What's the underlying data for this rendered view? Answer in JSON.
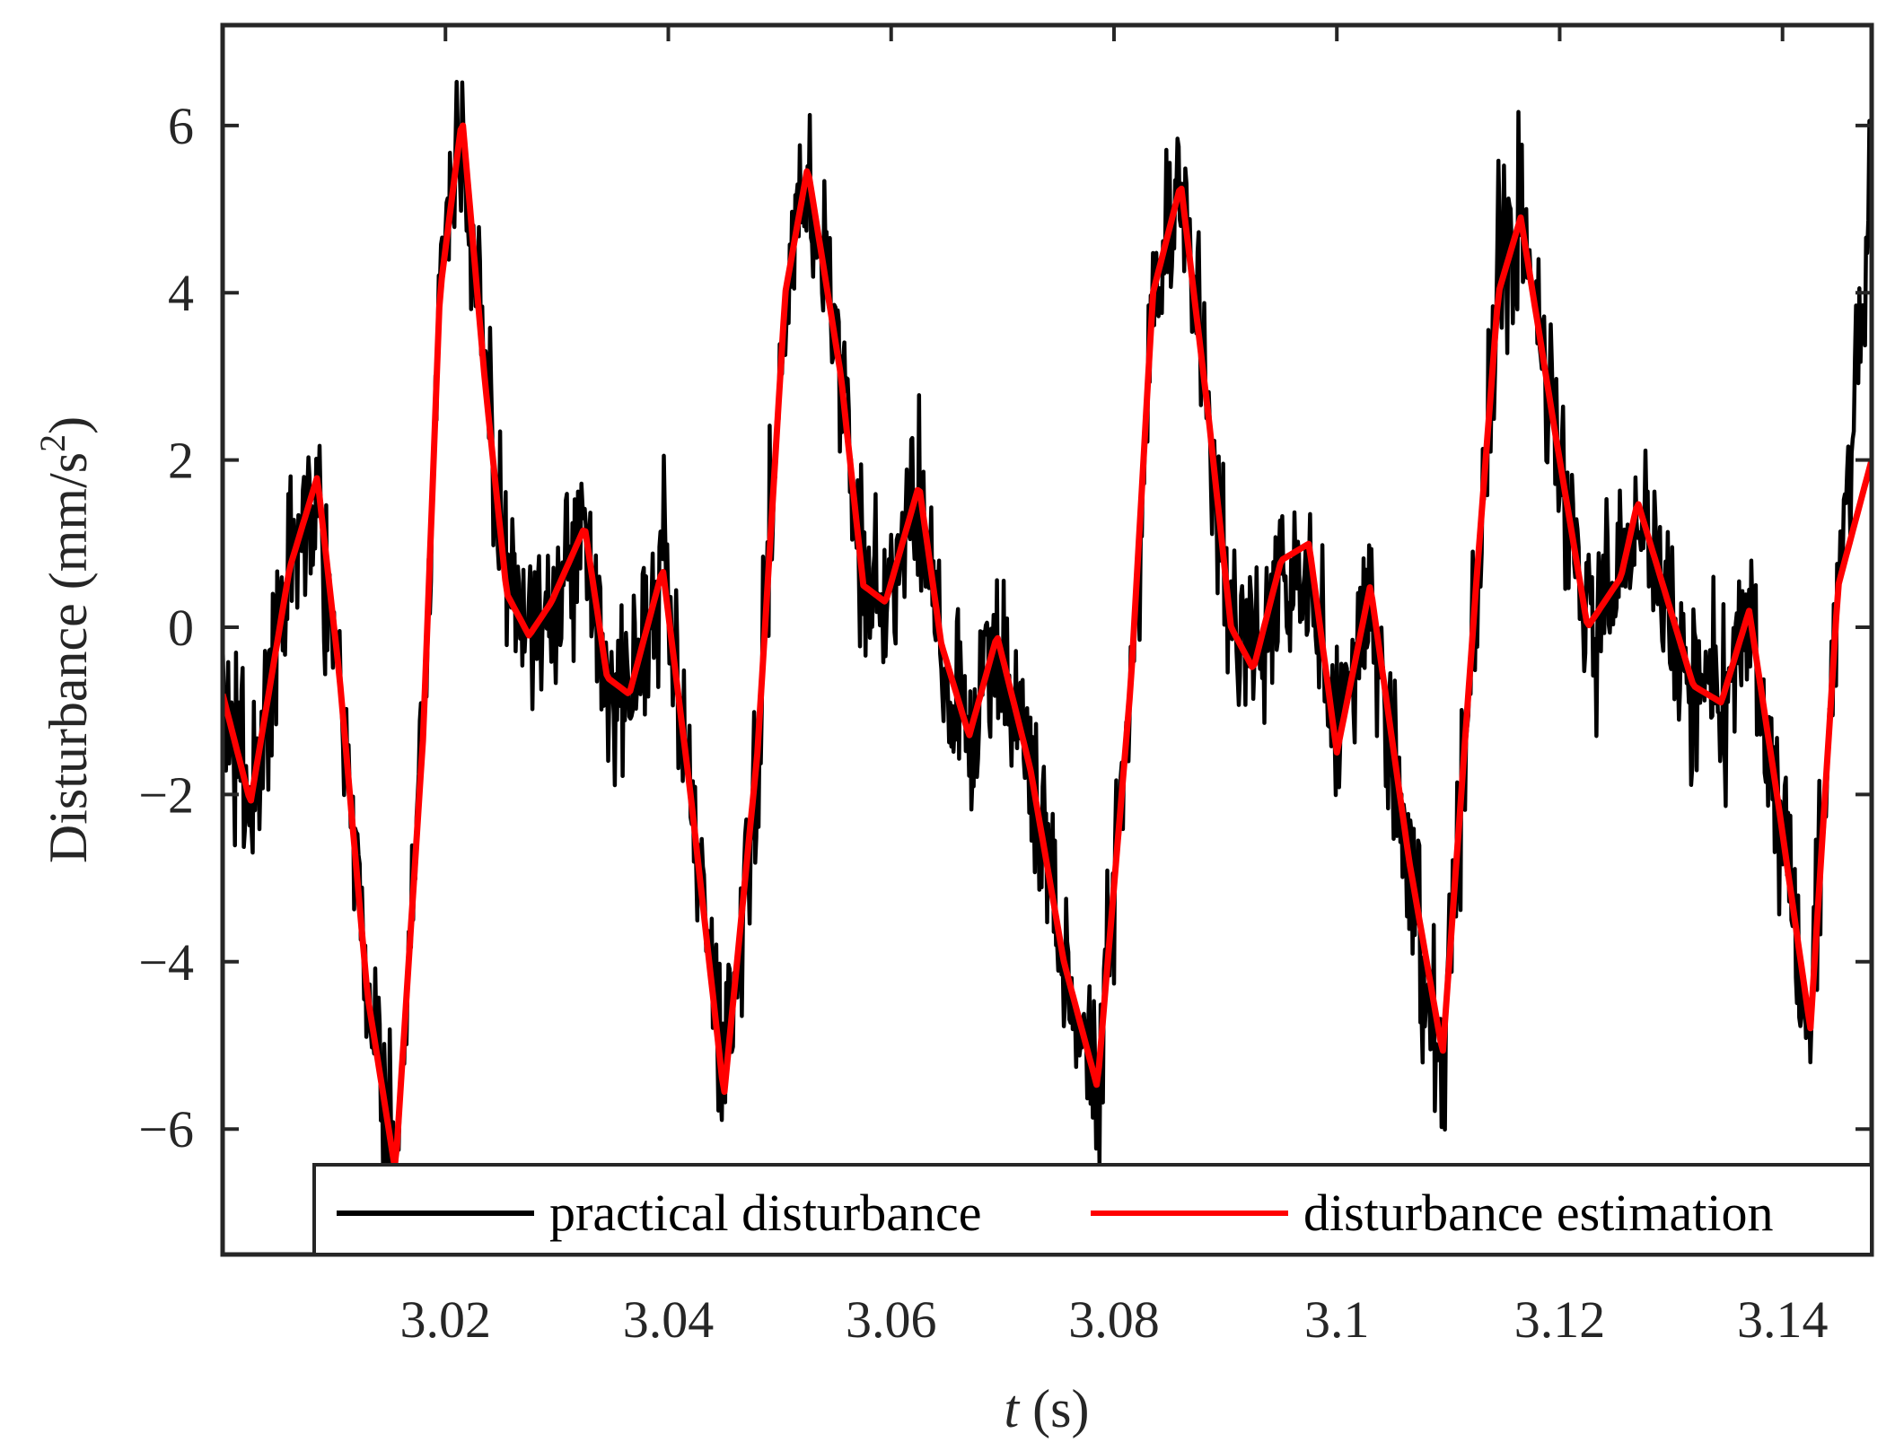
{
  "chart_data": {
    "type": "line",
    "xlabel": {
      "var": "t",
      "unit": "(s)"
    },
    "ylabel": {
      "text": "Disturbance (mm/s",
      "sup": "2",
      "close": ")"
    },
    "xlim": [
      3.0,
      3.148
    ],
    "ylim": [
      -7.5,
      7.2
    ],
    "xticks": [
      3.02,
      3.04,
      3.06,
      3.08,
      3.1,
      3.12,
      3.14
    ],
    "xtick_labels": [
      "3.02",
      "3.04",
      "3.06",
      "3.08",
      "3.1",
      "3.12",
      "3.14"
    ],
    "yticks": [
      -6,
      -4,
      -2,
      0,
      2,
      4,
      6
    ],
    "ytick_labels": [
      "−6",
      "−4",
      "−2",
      "0",
      "2",
      "4",
      "6"
    ],
    "grid": false,
    "legend_position": "bottom",
    "series": [
      {
        "name": "practical disturbance",
        "color": "#000000",
        "noise_amplitude": 1.0,
        "x": [
          3.0,
          3.0025,
          3.006,
          3.0085,
          3.0105,
          3.013,
          3.0155,
          3.018,
          3.0195,
          3.0215,
          3.0235,
          3.0255,
          3.0275,
          3.0295,
          3.0325,
          3.0345,
          3.0365,
          3.0395,
          3.042,
          3.045,
          3.048,
          3.0505,
          3.0525,
          3.0555,
          3.0575,
          3.0595,
          3.0625,
          3.0645,
          3.067,
          3.0695,
          3.0725,
          3.0755,
          3.0785,
          3.0815,
          3.0835,
          3.086,
          3.0885,
          3.0905,
          3.0925,
          3.095,
          3.0975,
          3.1,
          3.103,
          3.1065,
          3.1095,
          3.1125,
          3.1145,
          3.1165,
          3.1195,
          3.1225,
          3.1255,
          3.127,
          3.1295,
          3.132,
          3.1345,
          3.137,
          3.1395,
          3.1425,
          3.145,
          3.148
        ],
        "y": [
          -0.8,
          -2.1,
          0.7,
          1.6,
          -0.5,
          -4.3,
          -6.5,
          -1.2,
          4.2,
          6.0,
          3.2,
          0.4,
          0.0,
          0.3,
          1.1,
          -0.7,
          -0.7,
          0.7,
          -2.1,
          -5.6,
          -1.5,
          4.2,
          5.4,
          3.0,
          0.6,
          0.3,
          1.6,
          -0.2,
          -1.3,
          -0.2,
          -1.7,
          -4.0,
          -5.4,
          -0.8,
          4.2,
          5.2,
          2.5,
          0.0,
          -0.4,
          0.8,
          0.8,
          -1.4,
          0.4,
          -2.8,
          -5.2,
          0.4,
          4.2,
          4.8,
          2.3,
          0.0,
          0.5,
          1.4,
          0.4,
          -0.7,
          -0.9,
          0.2,
          -2.1,
          -4.6,
          0.6,
          4.8
        ]
      },
      {
        "name": "disturbance estimation",
        "color": "#ff0000",
        "x": [
          3.0,
          3.0025,
          3.006,
          3.0085,
          3.0105,
          3.013,
          3.0155,
          3.018,
          3.0195,
          3.0215,
          3.0235,
          3.0255,
          3.0275,
          3.0295,
          3.0325,
          3.0345,
          3.0365,
          3.0395,
          3.042,
          3.045,
          3.048,
          3.0505,
          3.0525,
          3.0555,
          3.0575,
          3.0595,
          3.0625,
          3.0645,
          3.067,
          3.0695,
          3.0725,
          3.0755,
          3.0785,
          3.0815,
          3.0835,
          3.086,
          3.0885,
          3.0905,
          3.0925,
          3.095,
          3.0975,
          3.1,
          3.103,
          3.1065,
          3.1095,
          3.1125,
          3.1145,
          3.1165,
          3.1195,
          3.1225,
          3.1255,
          3.127,
          3.1295,
          3.132,
          3.1345,
          3.137,
          3.1395,
          3.1425,
          3.145,
          3.148
        ],
        "y": [
          -0.8,
          -2.1,
          0.7,
          1.8,
          -0.6,
          -4.4,
          -6.5,
          -1.3,
          4.0,
          6.1,
          3.0,
          0.4,
          -0.1,
          0.3,
          1.2,
          -0.6,
          -0.8,
          0.7,
          -2.0,
          -5.6,
          -1.5,
          4.0,
          5.5,
          3.0,
          0.5,
          0.3,
          1.7,
          -0.2,
          -1.3,
          -0.1,
          -1.7,
          -4.0,
          -5.5,
          -0.7,
          4.0,
          5.3,
          2.5,
          0.0,
          -0.5,
          0.8,
          1.0,
          -1.5,
          0.5,
          -2.8,
          -5.1,
          0.5,
          4.0,
          4.9,
          2.4,
          0.0,
          0.6,
          1.5,
          0.4,
          -0.7,
          -0.9,
          0.2,
          -2.0,
          -4.8,
          0.5,
          2.0
        ]
      }
    ]
  }
}
